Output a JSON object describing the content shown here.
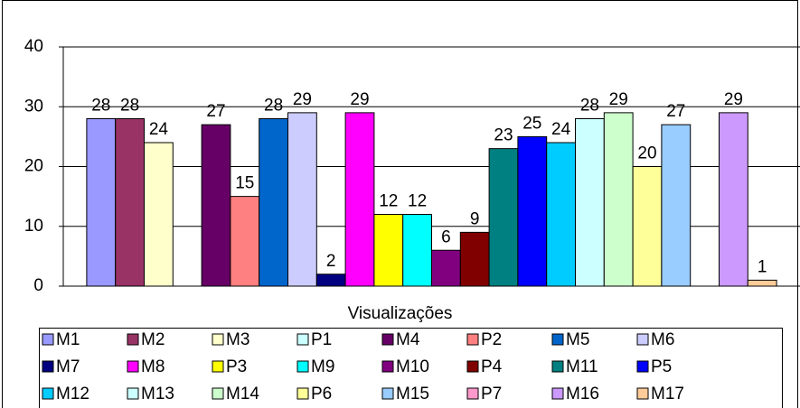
{
  "chart_data": {
    "type": "bar",
    "categories": [
      "Visualizações"
    ],
    "series": [
      {
        "name": "M1",
        "color": "#9999FF",
        "values": [
          28
        ]
      },
      {
        "name": "M2",
        "color": "#993366",
        "values": [
          28
        ]
      },
      {
        "name": "M3",
        "color": "#FFFFCC",
        "values": [
          24
        ]
      },
      {
        "name": "P1",
        "color": "#CCFFFF",
        "values": [
          null
        ]
      },
      {
        "name": "M4",
        "color": "#660066",
        "values": [
          27
        ]
      },
      {
        "name": "P2",
        "color": "#FF8080",
        "values": [
          15
        ]
      },
      {
        "name": "M5",
        "color": "#0066CC",
        "values": [
          28
        ]
      },
      {
        "name": "M6",
        "color": "#CCCCFF",
        "values": [
          29
        ]
      },
      {
        "name": "M7",
        "color": "#000080",
        "values": [
          2
        ]
      },
      {
        "name": "M8",
        "color": "#FF00FF",
        "values": [
          29
        ]
      },
      {
        "name": "P3",
        "color": "#FFFF00",
        "values": [
          12
        ]
      },
      {
        "name": "M9",
        "color": "#00FFFF",
        "values": [
          12
        ]
      },
      {
        "name": "M10",
        "color": "#800080",
        "values": [
          6
        ]
      },
      {
        "name": "P4",
        "color": "#800000",
        "values": [
          9
        ]
      },
      {
        "name": "M11",
        "color": "#008080",
        "values": [
          23
        ]
      },
      {
        "name": "P5",
        "color": "#0000FF",
        "values": [
          25
        ]
      },
      {
        "name": "M12",
        "color": "#00CCFF",
        "values": [
          24
        ]
      },
      {
        "name": "M13",
        "color": "#CCFFFF",
        "values": [
          28
        ]
      },
      {
        "name": "M14",
        "color": "#CCFFCC",
        "values": [
          29
        ]
      },
      {
        "name": "P6",
        "color": "#FFFF99",
        "values": [
          20
        ]
      },
      {
        "name": "M15",
        "color": "#99CCFF",
        "values": [
          27
        ]
      },
      {
        "name": "P7",
        "color": "#FF99CC",
        "values": [
          null
        ]
      },
      {
        "name": "M16",
        "color": "#CC99FF",
        "values": [
          29
        ]
      },
      {
        "name": "M17",
        "color": "#FFCC99",
        "values": [
          1
        ]
      }
    ],
    "ylim": [
      0,
      40
    ],
    "yticks": [
      0,
      10,
      20,
      30,
      40
    ],
    "grid": true
  }
}
